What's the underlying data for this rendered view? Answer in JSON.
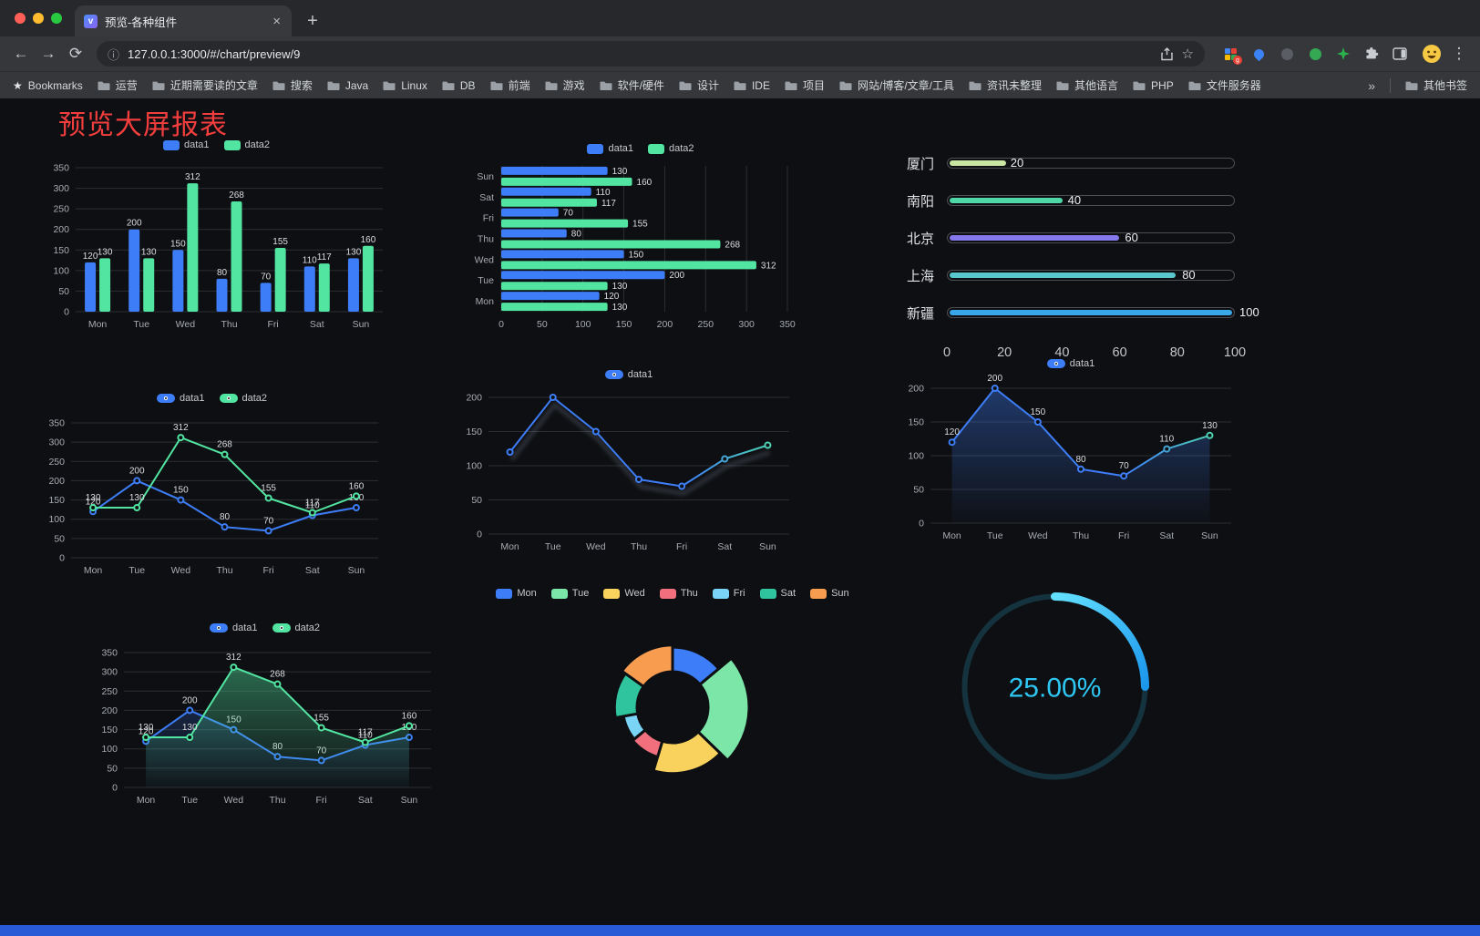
{
  "browser": {
    "tab_title": "预览-各种组件",
    "url": "127.0.0.1:3000/#/chart/preview/9",
    "bookmarks_label": "Bookmarks",
    "bookmarks": [
      "运营",
      "近期需要读的文章",
      "搜索",
      "Java",
      "Linux",
      "DB",
      "前端",
      "游戏",
      "软件/硬件",
      "设计",
      "IDE",
      "项目",
      "网站/博客/文章/工具",
      "资讯未整理",
      "其他语言",
      "PHP",
      "文件服务器"
    ],
    "overflow_chevron": "»",
    "other_bookmarks": "其他书签"
  },
  "page": {
    "title": "预览大屏报表",
    "title_color": "#F43E3E",
    "background": "#0E0F12",
    "footer_color": "#2A5BD7"
  },
  "chart_data": [
    {
      "id": "bar-grouped",
      "type": "bar",
      "categories": [
        "Mon",
        "Tue",
        "Wed",
        "Thu",
        "Fri",
        "Sat",
        "Sun"
      ],
      "series": [
        {
          "name": "data1",
          "color": "#3D7EF8",
          "values": [
            120,
            200,
            150,
            80,
            70,
            110,
            130
          ]
        },
        {
          "name": "data2",
          "color": "#52E5A2",
          "values": [
            130,
            130,
            312,
            268,
            155,
            117,
            160
          ]
        }
      ],
      "ylim": [
        0,
        350
      ],
      "ystep": 50,
      "value_labels": true,
      "legend_position": "top",
      "grid": true
    },
    {
      "id": "bar-horizontal",
      "type": "hbar",
      "categories": [
        "Mon",
        "Tue",
        "Wed",
        "Thu",
        "Fri",
        "Sat",
        "Sun"
      ],
      "series": [
        {
          "name": "data1",
          "color": "#3D7EF8",
          "values": [
            120,
            200,
            150,
            80,
            70,
            110,
            130
          ]
        },
        {
          "name": "data2",
          "color": "#52E5A2",
          "values": [
            130,
            130,
            312,
            268,
            155,
            117,
            160
          ]
        }
      ],
      "xlim": [
        0,
        350
      ],
      "xstep": 50,
      "value_labels": true,
      "legend_position": "top",
      "grid": true
    },
    {
      "id": "progress-bars",
      "type": "progress",
      "max": 100,
      "items": [
        {
          "label": "厦门",
          "value": 20,
          "color": "#C9E6A2"
        },
        {
          "label": "南阳",
          "value": 40,
          "color": "#4FD7A8"
        },
        {
          "label": "北京",
          "value": 60,
          "color": "#8478EA"
        },
        {
          "label": "上海",
          "value": 80,
          "color": "#58C8CE"
        },
        {
          "label": "新疆",
          "value": 100,
          "color": "#3AA8E8"
        }
      ],
      "axis_ticks": [
        0,
        20,
        40,
        60,
        80,
        100
      ]
    },
    {
      "id": "line-two-series",
      "type": "line",
      "categories": [
        "Mon",
        "Tue",
        "Wed",
        "Thu",
        "Fri",
        "Sat",
        "Sun"
      ],
      "series": [
        {
          "name": "data1",
          "color": "#3D7EF8",
          "values": [
            120,
            200,
            150,
            80,
            70,
            110,
            130
          ]
        },
        {
          "name": "data2",
          "color": "#52E5A2",
          "values": [
            130,
            130,
            312,
            268,
            155,
            117,
            160
          ]
        }
      ],
      "ylim": [
        0,
        350
      ],
      "ystep": 50,
      "value_labels": true,
      "legend_position": "top",
      "grid": true
    },
    {
      "id": "line-gradient",
      "type": "line",
      "glow": true,
      "categories": [
        "Mon",
        "Tue",
        "Wed",
        "Thu",
        "Fri",
        "Sat",
        "Sun"
      ],
      "series": [
        {
          "name": "data1",
          "color": "#3D7EF8",
          "gradient_to": "#52E5A2",
          "values": [
            120,
            200,
            150,
            80,
            70,
            110,
            130
          ]
        }
      ],
      "ylim": [
        0,
        200
      ],
      "ystep": 50,
      "value_labels": false,
      "legend_position": "top",
      "grid": true
    },
    {
      "id": "line-area",
      "type": "line",
      "categories": [
        "Mon",
        "Tue",
        "Wed",
        "Thu",
        "Fri",
        "Sat",
        "Sun"
      ],
      "series": [
        {
          "name": "data1",
          "color": "#3D7EF8",
          "gradient_to": "#52E5A2",
          "area": true,
          "area_opacity": 0.38,
          "values": [
            120,
            200,
            150,
            80,
            70,
            110,
            130
          ]
        }
      ],
      "ylim": [
        0,
        200
      ],
      "ystep": 50,
      "value_labels": true,
      "legend_position": "top",
      "grid": true
    },
    {
      "id": "line-two-area",
      "type": "line",
      "categories": [
        "Mon",
        "Tue",
        "Wed",
        "Thu",
        "Fri",
        "Sat",
        "Sun"
      ],
      "series": [
        {
          "name": "data1",
          "color": "#3D7EF8",
          "area": true,
          "area_opacity": 0.2,
          "values": [
            120,
            200,
            150,
            80,
            70,
            110,
            130
          ]
        },
        {
          "name": "data2",
          "color": "#52E5A2",
          "area": true,
          "area_opacity": 0.42,
          "values": [
            130,
            130,
            312,
            268,
            155,
            117,
            160
          ]
        }
      ],
      "ylim": [
        0,
        350
      ],
      "ystep": 50,
      "value_labels": true,
      "legend_position": "top",
      "grid": true
    },
    {
      "id": "rose-doughnut",
      "type": "rose",
      "legend_position": "top",
      "items": [
        {
          "name": "Mon",
          "value": 120,
          "color": "#3D7EF8"
        },
        {
          "name": "Tue",
          "value": 200,
          "color": "#7BE6A8"
        },
        {
          "name": "Wed",
          "value": 150,
          "color": "#F8D25C"
        },
        {
          "name": "Thu",
          "value": 80,
          "color": "#F2707E"
        },
        {
          "name": "Fri",
          "value": 70,
          "color": "#79D4F5"
        },
        {
          "name": "Sat",
          "value": 110,
          "color": "#2FC39E"
        },
        {
          "name": "Sun",
          "value": 130,
          "color": "#F89C50"
        }
      ]
    },
    {
      "id": "gauge-progress",
      "type": "gauge",
      "value": 25,
      "display": "25.00%",
      "colors": [
        "#63E0FF",
        "#1B96EC"
      ],
      "track_color": "#14333E",
      "text_color": "#2EC6F2"
    }
  ]
}
